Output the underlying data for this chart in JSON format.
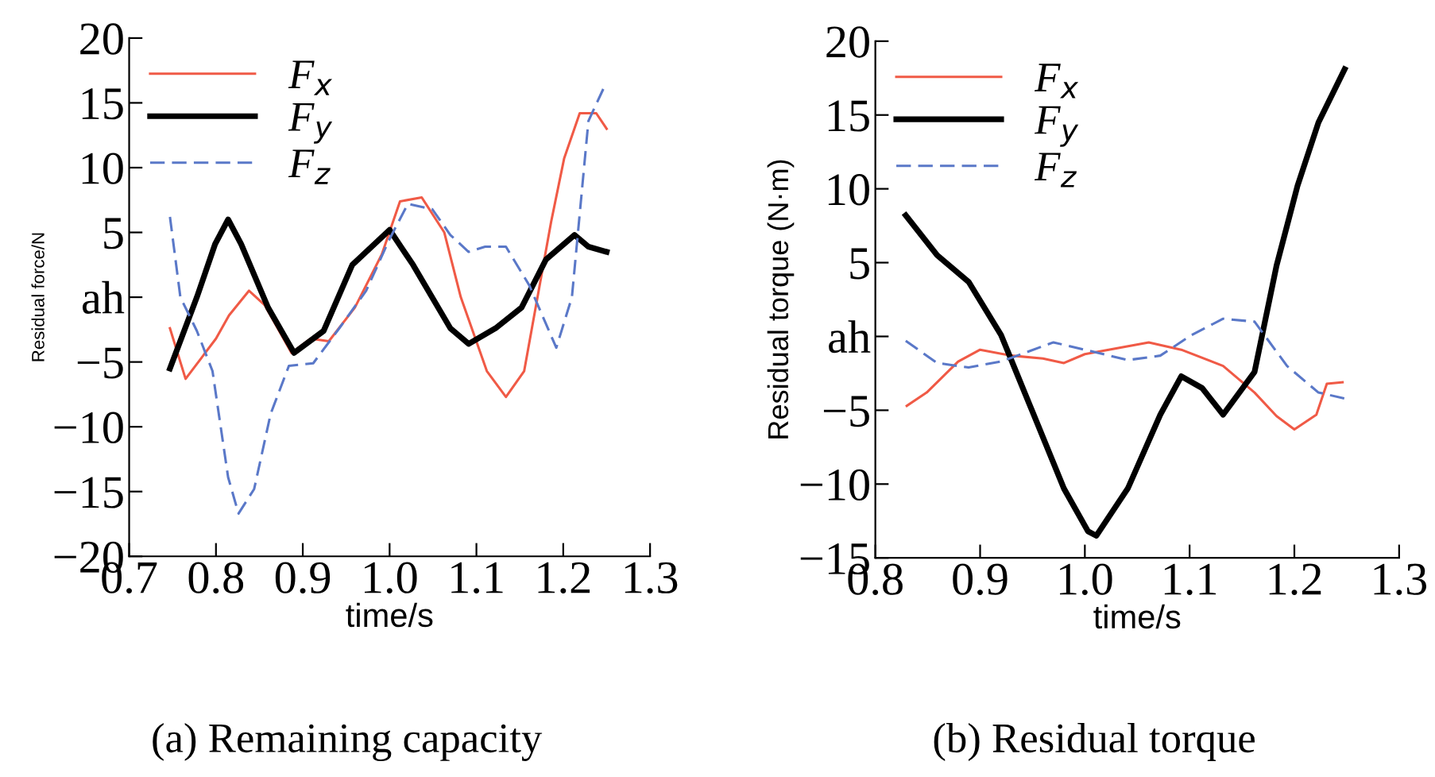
{
  "chart_data": [
    {
      "type": "line",
      "xlabel": "time/s",
      "ylabel": "Residual force/N",
      "xlim": [
        0.7,
        1.3
      ],
      "ylim": [
        -20,
        20
      ],
      "xticks": [
        0.7,
        0.8,
        0.9,
        {
          "value": 1.0,
          "label": "1.0"
        },
        1.1,
        1.2,
        1.3
      ],
      "yticks": [
        -20,
        -15,
        -10,
        -5,
        {
          "value": 0,
          "label": "ah"
        },
        5,
        10,
        15,
        20
      ],
      "legend": "top left",
      "grid": false,
      "annotations": [
        "(a) Remaining capacity"
      ],
      "series": [
        {
          "name": "F$_{x}$",
          "color": "#f05a46",
          "line_style": "solid",
          "x": [
            0.747,
            0.765,
            0.8,
            0.815,
            0.838,
            0.856,
            0.887,
            0.909,
            0.93,
            0.96,
            0.991,
            1.012,
            1.037,
            1.063,
            1.082,
            1.112,
            1.134,
            1.155,
            1.186,
            1.201,
            1.219,
            1.238,
            1.25
          ],
          "values": [
            -2.4,
            -6.3,
            -3.2,
            -1.4,
            0.5,
            -0.6,
            -4.3,
            -3.2,
            -3.4,
            -0.8,
            3.3,
            7.4,
            7.7,
            5,
            0,
            -5.7,
            -7.7,
            -5.7,
            5.8,
            10.7,
            14.2,
            14.2,
            13
          ]
        },
        {
          "name": "F$_{y}$",
          "color": "#000000",
          "line_style": "solid",
          "x": [
            0.747,
            0.778,
            0.799,
            0.814,
            0.829,
            0.86,
            0.89,
            0.924,
            0.957,
            1.0,
            1.027,
            1.07,
            1.091,
            1.122,
            1.152,
            1.18,
            1.213,
            1.229,
            1.25
          ],
          "values": [
            -5.5,
            0,
            4.1,
            6,
            4.1,
            -0.8,
            -4.3,
            -2.6,
            2.5,
            5.2,
            2.5,
            -2.4,
            -3.6,
            -2.4,
            -0.8,
            2.9,
            4.8,
            3.9,
            3.5
          ]
        },
        {
          "name": "F$_{z}$",
          "color": "#5a78c8",
          "line_style": "dashed",
          "x": [
            0.747,
            0.759,
            0.778,
            0.796,
            0.814,
            0.826,
            0.844,
            0.863,
            0.884,
            0.912,
            0.942,
            0.973,
            1.0,
            1.021,
            1.049,
            1.07,
            1.091,
            1.11,
            1.134,
            1.161,
            1.192,
            1.21,
            1.229,
            1.247
          ],
          "values": [
            6.2,
            0,
            -2.6,
            -5.7,
            -13.9,
            -16.7,
            -14.8,
            -9,
            -5.3,
            -5.1,
            -2.4,
            0.5,
            4.5,
            7.2,
            6.8,
            4.8,
            3.5,
            3.9,
            3.9,
            0.9,
            -3.9,
            0,
            13.6,
            16.2
          ]
        }
      ]
    },
    {
      "type": "line",
      "xlabel": "time/s",
      "ylabel": "Residual torque (N·m)",
      "xlim": [
        0.8,
        1.3
      ],
      "ylim": [
        -15,
        20
      ],
      "xticks": [
        0.8,
        0.9,
        {
          "value": 1.0,
          "label": "1.0"
        },
        1.1,
        1.2,
        1.3
      ],
      "yticks": [
        -15,
        -10,
        -5,
        {
          "value": 0,
          "label": "ah"
        },
        5,
        10,
        15,
        20
      ],
      "legend": "top left",
      "grid": false,
      "annotations": [
        "(b) Residual torque"
      ],
      "series": [
        {
          "name": "F$_{x}$",
          "color": "#f05a46",
          "line_style": "solid",
          "x": [
            0.83,
            0.849,
            0.879,
            0.9,
            0.93,
            0.96,
            0.98,
            1.0,
            1.031,
            1.061,
            1.092,
            1.132,
            1.162,
            1.183,
            1.2,
            1.221,
            1.231,
            1.246
          ],
          "values": [
            -4.7,
            -3.8,
            -1.7,
            -0.9,
            -1.3,
            -1.5,
            -1.8,
            -1.2,
            -0.8,
            -0.4,
            -0.9,
            -2.0,
            -3.8,
            -5.4,
            -6.3,
            -5.3,
            -3.2,
            -3.1
          ]
        },
        {
          "name": "F$_{y}$",
          "color": "#000000",
          "line_style": "solid",
          "x": [
            0.829,
            0.859,
            0.889,
            0.92,
            0.95,
            0.98,
            1.003,
            1.011,
            1.041,
            1.072,
            1.092,
            1.112,
            1.132,
            1.162,
            1.183,
            1.203,
            1.223,
            1.248
          ],
          "values": [
            8.2,
            5.5,
            3.7,
            0.1,
            -5.1,
            -10.3,
            -13.2,
            -13.5,
            -10.3,
            -5.3,
            -2.7,
            -3.5,
            -5.3,
            -2.4,
            4.8,
            10.2,
            14.5,
            18.1
          ]
        },
        {
          "name": "F$_{z}$",
          "color": "#5a78c8",
          "line_style": "dashed",
          "x": [
            0.829,
            0.859,
            0.889,
            0.92,
            0.97,
            1.0,
            1.041,
            1.072,
            1.102,
            1.132,
            1.162,
            1.193,
            1.223,
            1.248
          ],
          "values": [
            -0.3,
            -1.8,
            -2.1,
            -1.7,
            -0.4,
            -0.9,
            -1.6,
            -1.3,
            0.1,
            1.2,
            1.0,
            -2.0,
            -3.8,
            -4.2
          ]
        }
      ]
    }
  ]
}
